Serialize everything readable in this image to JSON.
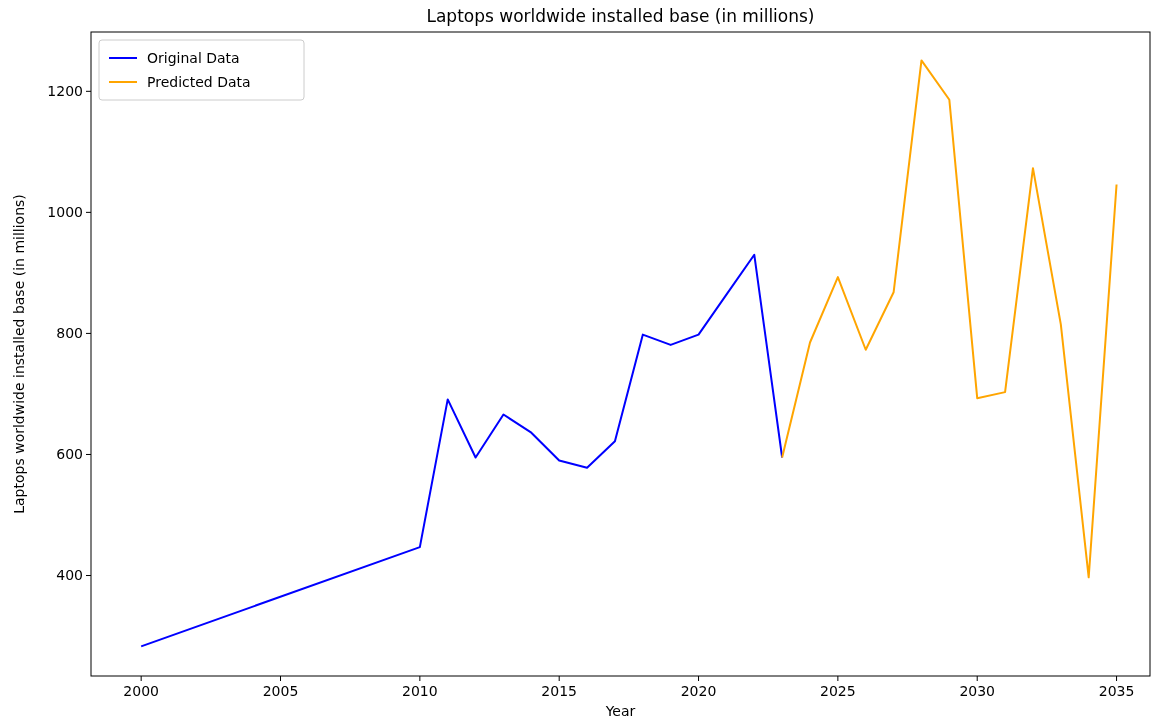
{
  "chart_data": {
    "type": "line",
    "title": "Laptops worldwide installed base (in millions)",
    "xlabel": "Year",
    "ylabel": "Laptops worldwide installed base (in millions)",
    "xlim": [
      1998.2,
      2036.2
    ],
    "xticks": [
      2000,
      2005,
      2010,
      2015,
      2020,
      2025,
      2030,
      2035
    ],
    "ylim": [
      234,
      1298
    ],
    "yticks": [
      400,
      600,
      800,
      1000,
      1200
    ],
    "legend": "top left",
    "grid": false,
    "series": [
      {
        "name": "Original Data",
        "color": "#0000ff",
        "x": [
          2000,
          2010,
          2011,
          2012,
          2013,
          2014,
          2015,
          2016,
          2017,
          2018,
          2019,
          2020,
          2021,
          2022,
          2023
        ],
        "values": [
          283,
          447,
          691,
          595,
          666,
          636,
          590,
          578,
          622,
          798,
          781,
          798,
          864,
          930,
          595
        ]
      },
      {
        "name": "Predicted Data",
        "color": "#ffa500",
        "x": [
          2023,
          2024,
          2025,
          2026,
          2027,
          2028,
          2029,
          2030,
          2031,
          2032,
          2033,
          2034,
          2035
        ],
        "values": [
          595,
          785,
          893,
          773,
          868,
          1251,
          1186,
          693,
          703,
          1073,
          815,
          397,
          1046
        ]
      }
    ]
  }
}
